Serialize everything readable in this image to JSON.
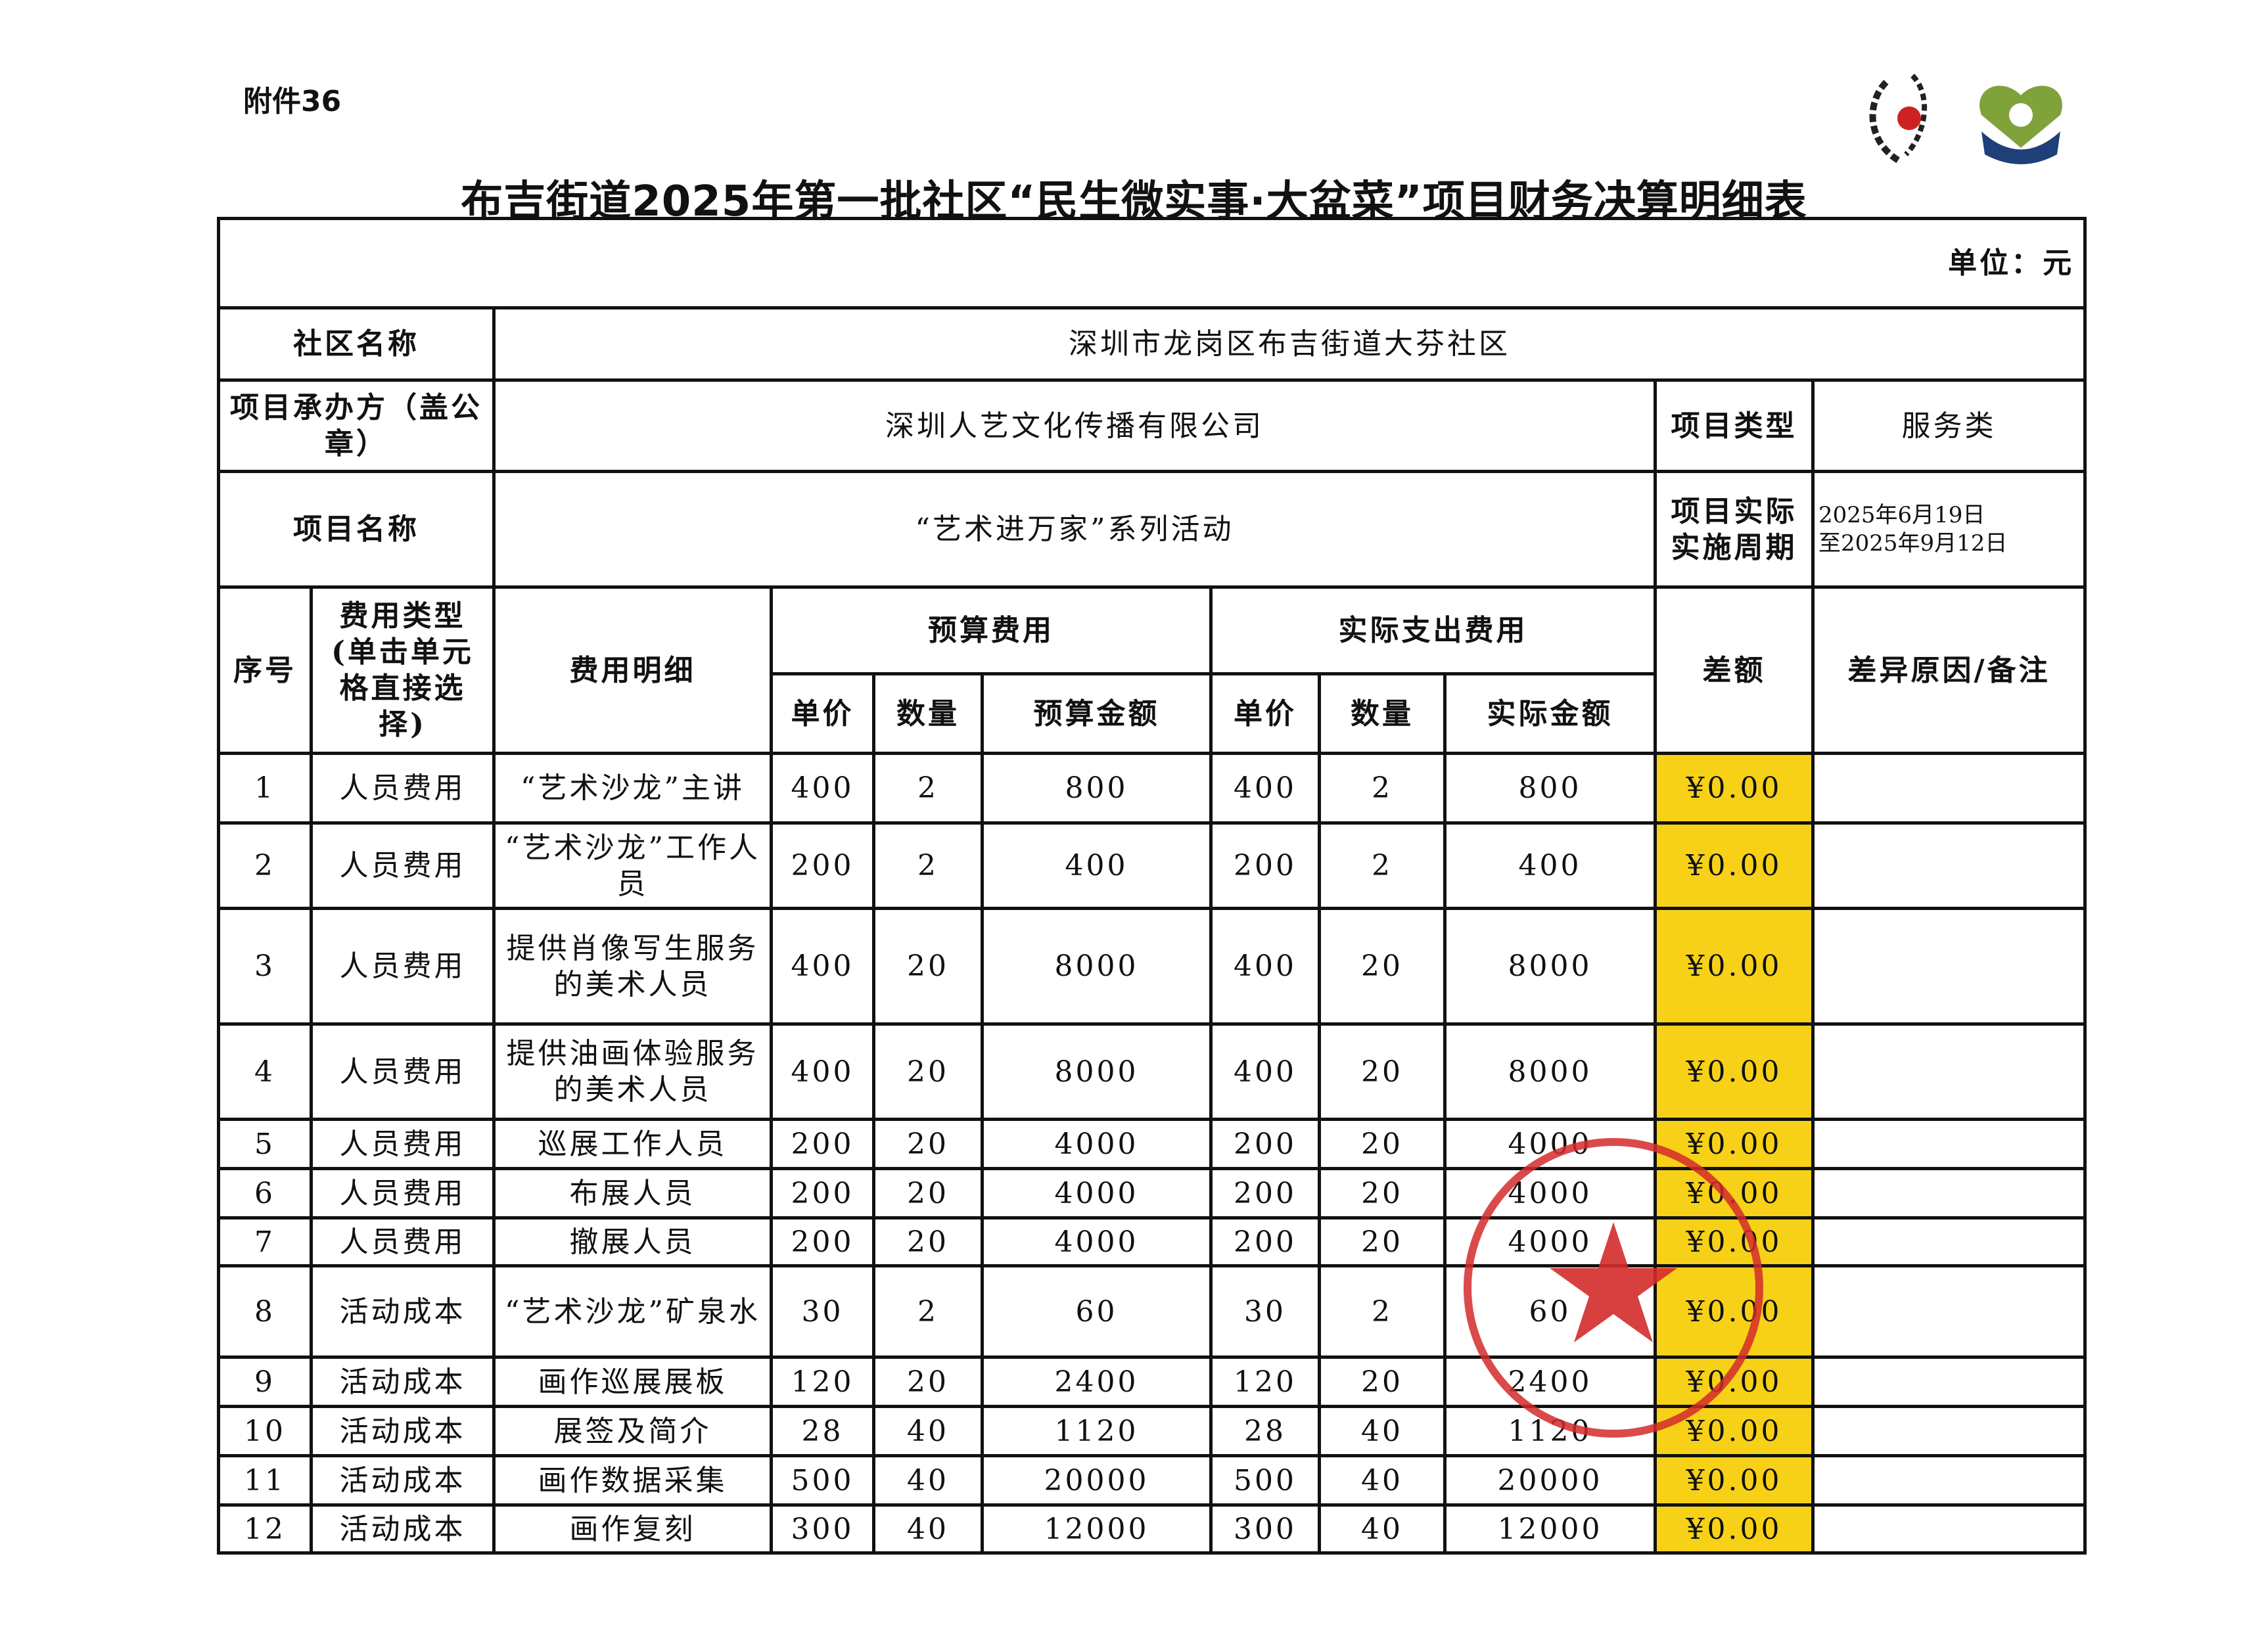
{
  "attachment_label": "附件36",
  "title": "布吉街道2025年第一批社区“民生微实事·大盆菜”项目财务决算明细表",
  "unit": "单位：元",
  "info": {
    "community_label": "社区名称",
    "community_value": "深圳市龙岗区布吉街道大芬社区",
    "contractor_label": "项目承办方（盖公章）",
    "contractor_value": "深圳人艺文化传播有限公司",
    "type_label": "项目类型",
    "type_value": "服务类",
    "name_label": "项目名称",
    "name_value": "“艺术进万家”系列活动",
    "period_label": "项目实际实施周期",
    "period_start": "2025年6月19日",
    "period_end": "至2025年9月12日"
  },
  "headers": {
    "seq": "序号",
    "cost_type": "费用类型(单击单元格直接选择)",
    "detail": "费用明细",
    "budget": "预算费用",
    "actual": "实际支出费用",
    "diff": "差额",
    "remark": "差异原因/备注",
    "unit_price": "单价",
    "qty": "数量",
    "budget_amount": "预算金额",
    "actual_amount": "实际金额"
  },
  "rows": [
    {
      "seq": "1",
      "type": "人员费用",
      "detail": "“艺术沙龙”主讲",
      "bp": "400",
      "bq": "2",
      "ba": "800",
      "ap": "400",
      "aq": "2",
      "aa": "800",
      "diff": "¥0.00",
      "remark": ""
    },
    {
      "seq": "2",
      "type": "人员费用",
      "detail": "“艺术沙龙”工作人员",
      "bp": "200",
      "bq": "2",
      "ba": "400",
      "ap": "200",
      "aq": "2",
      "aa": "400",
      "diff": "¥0.00",
      "remark": ""
    },
    {
      "seq": "3",
      "type": "人员费用",
      "detail": "提供肖像写生服务的美术人员",
      "bp": "400",
      "bq": "20",
      "ba": "8000",
      "ap": "400",
      "aq": "20",
      "aa": "8000",
      "diff": "¥0.00",
      "remark": ""
    },
    {
      "seq": "4",
      "type": "人员费用",
      "detail": "提供油画体验服务的美术人员",
      "bp": "400",
      "bq": "20",
      "ba": "8000",
      "ap": "400",
      "aq": "20",
      "aa": "8000",
      "diff": "¥0.00",
      "remark": ""
    },
    {
      "seq": "5",
      "type": "人员费用",
      "detail": "巡展工作人员",
      "bp": "200",
      "bq": "20",
      "ba": "4000",
      "ap": "200",
      "aq": "20",
      "aa": "4000",
      "diff": "¥0.00",
      "remark": ""
    },
    {
      "seq": "6",
      "type": "人员费用",
      "detail": "布展人员",
      "bp": "200",
      "bq": "20",
      "ba": "4000",
      "ap": "200",
      "aq": "20",
      "aa": "4000",
      "diff": "¥0.00",
      "remark": ""
    },
    {
      "seq": "7",
      "type": "人员费用",
      "detail": "撤展人员",
      "bp": "200",
      "bq": "20",
      "ba": "4000",
      "ap": "200",
      "aq": "20",
      "aa": "4000",
      "diff": "¥0.00",
      "remark": ""
    },
    {
      "seq": "8",
      "type": "活动成本",
      "detail": "“艺术沙龙”矿泉水",
      "bp": "30",
      "bq": "2",
      "ba": "60",
      "ap": "30",
      "aq": "2",
      "aa": "60",
      "diff": "¥0.00",
      "remark": ""
    },
    {
      "seq": "9",
      "type": "活动成本",
      "detail": "画作巡展展板",
      "bp": "120",
      "bq": "20",
      "ba": "2400",
      "ap": "120",
      "aq": "20",
      "aa": "2400",
      "diff": "¥0.00",
      "remark": ""
    },
    {
      "seq": "10",
      "type": "活动成本",
      "detail": "展签及简介",
      "bp": "28",
      "bq": "40",
      "ba": "1120",
      "ap": "28",
      "aq": "40",
      "aa": "1120",
      "diff": "¥0.00",
      "remark": ""
    },
    {
      "seq": "11",
      "type": "活动成本",
      "detail": "画作数据采集",
      "bp": "500",
      "bq": "40",
      "ba": "20000",
      "ap": "500",
      "aq": "40",
      "aa": "20000",
      "diff": "¥0.00",
      "remark": ""
    },
    {
      "seq": "12",
      "type": "活动成本",
      "detail": "画作复刻",
      "bp": "300",
      "bq": "40",
      "ba": "12000",
      "ap": "300",
      "aq": "40",
      "aa": "12000",
      "diff": "¥0.00",
      "remark": ""
    }
  ],
  "colors": {
    "diff_highlight": "#f7d117",
    "stamp": "#d42a2a"
  },
  "stamp": {
    "icon": "red-company-seal"
  },
  "logos": [
    "party-emblem-logo",
    "community-heart-logo"
  ]
}
